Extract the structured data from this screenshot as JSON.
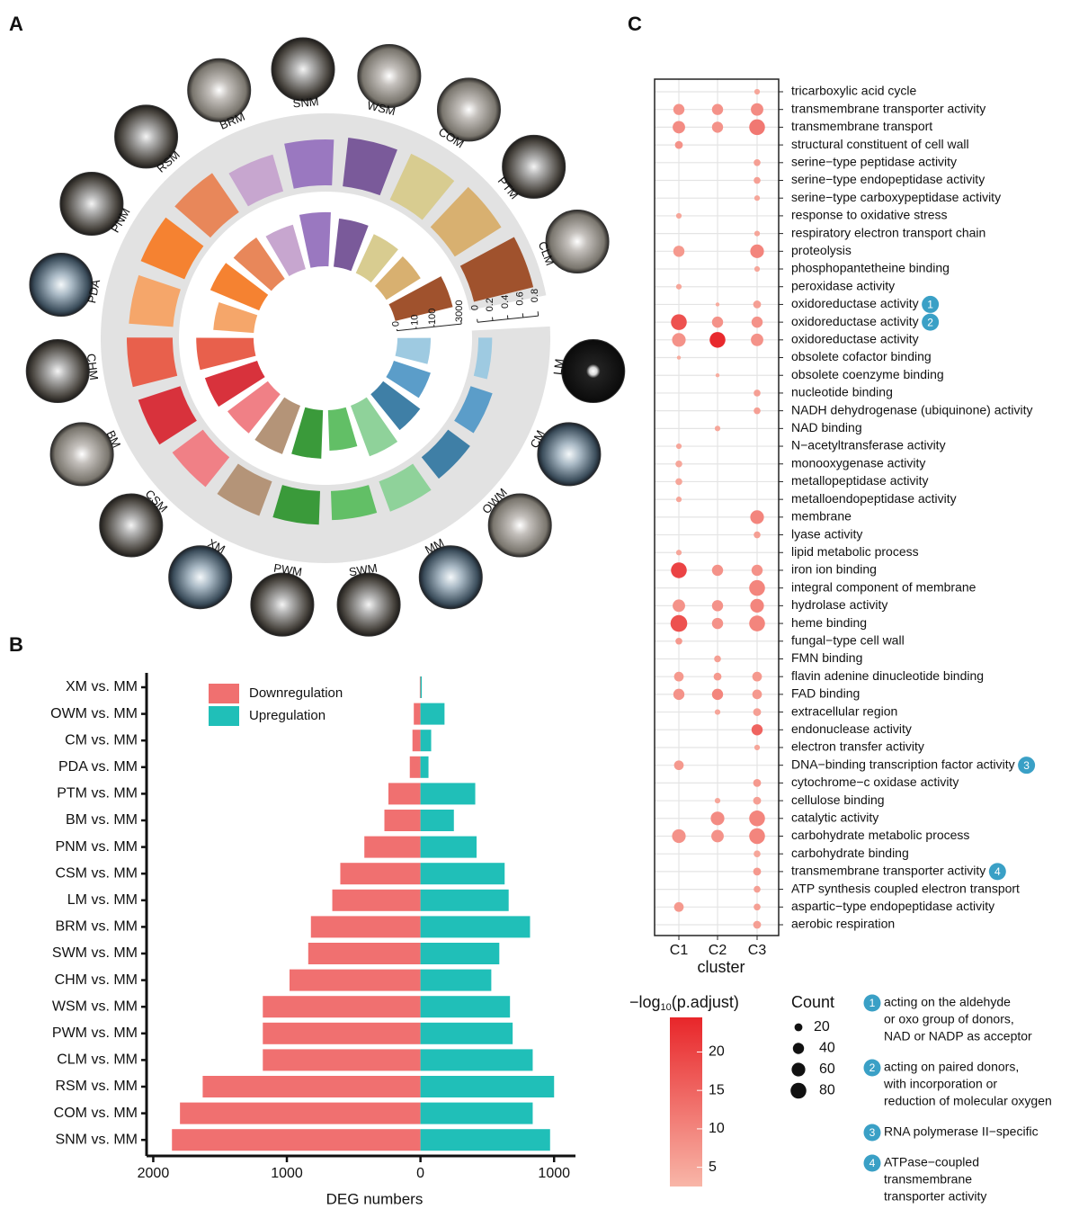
{
  "chart_data": [
    {
      "type": "polar_bar",
      "label": "A",
      "categories": [
        "LM",
        "CM",
        "OWM",
        "MM",
        "SWM",
        "PWM",
        "XM",
        "CSM",
        "BM",
        "CHM",
        "PDA",
        "PNM",
        "RSM",
        "BRM",
        "SNM",
        "WSM",
        "COM",
        "PTM",
        "CLM"
      ],
      "colors": [
        "#9ecae1",
        "#5b9dc9",
        "#3f7fa6",
        "#8fd29a",
        "#62bf66",
        "#3a9a3a",
        "#b49478",
        "#f08086",
        "#d8323c",
        "#e8604c",
        "#f5a66a",
        "#f58231",
        "#e8875a",
        "#c7a6cf",
        "#9a78c0",
        "#7a5a9a",
        "#d8cc90",
        "#d8b070",
        "#a0522d"
      ],
      "series": [
        {
          "values": [
            0.18,
            0.3,
            0.36,
            0.42,
            0.38,
            0.44,
            0.48,
            0.5,
            0.58,
            0.6,
            0.58,
            0.62,
            0.62,
            0.5,
            0.6,
            0.64,
            0.66,
            0.72,
            0.8
          ]
        },
        {
          "axis": "y2",
          "values": [
            60,
            120,
            300,
            800,
            150,
            400,
            600,
            500,
            900,
            1200,
            150,
            700,
            500,
            300,
            800,
            400,
            200,
            150,
            1500
          ]
        }
      ],
      "ylim": [
        0,
        0.8
      ],
      "yticks": [
        0,
        0.2,
        0.4,
        0.6,
        0.8
      ],
      "y2lim": [
        0,
        3000
      ],
      "y2ticks": [
        0,
        10,
        100,
        3000
      ],
      "y2scale": "log1p"
    },
    {
      "type": "hbar",
      "label": "B",
      "categories": [
        "XM vs. MM",
        "OWM vs. MM",
        "CM vs. MM",
        "PDA vs. MM",
        "PTM vs. MM",
        "BM vs. MM",
        "PNM vs. MM",
        "CSM vs. MM",
        "LM vs. MM",
        "BRM vs. MM",
        "SWM vs. MM",
        "CHM vs. MM",
        "WSM vs. MM",
        "PWM vs. MM",
        "CLM vs. MM",
        "RSM vs. MM",
        "COM vs. MM",
        "SNM vs. MM"
      ],
      "series": [
        {
          "name": "Downregulation",
          "color": "#f07070",
          "values": [
            -5,
            -50,
            -60,
            -80,
            -240,
            -270,
            -420,
            -600,
            -660,
            -820,
            -840,
            -980,
            -1180,
            -1180,
            -1180,
            -1630,
            -1800,
            -1860
          ]
        },
        {
          "name": "Upregulation",
          "color": "#20bfb8",
          "values": [
            10,
            180,
            80,
            60,
            410,
            250,
            420,
            630,
            660,
            820,
            590,
            530,
            670,
            690,
            840,
            1000,
            840,
            970
          ]
        }
      ],
      "xlim": [
        -2050,
        1160
      ],
      "xticks": [
        {
          "value": -2000,
          "label": "2000"
        },
        {
          "value": -1000,
          "label": "1000"
        },
        0,
        1000
      ],
      "xlabel": "DEG numbers"
    },
    {
      "type": "dot",
      "label": "C",
      "terms": [
        "tricarboxylic acid cycle",
        "transmembrane transporter activity",
        "transmembrane transport",
        "structural constituent of cell wall",
        "serine−type peptidase activity",
        "serine−type endopeptidase activity",
        "serine−type carboxypeptidase activity",
        "response to oxidative stress",
        "respiratory electron transport chain",
        "proteolysis",
        "phosphopantetheine binding",
        "peroxidase activity",
        "oxidoreductase activity",
        "oxidoreductase activity",
        "oxidoreductase activity",
        "obsolete cofactor binding",
        "obsolete coenzyme binding",
        "nucleotide binding",
        "NADH dehydrogenase (ubiquinone) activity",
        "NAD binding",
        "N−acetyltransferase activity",
        "monooxygenase activity",
        "metallopeptidase activity",
        "metalloendopeptidase activity",
        "membrane",
        "lyase activity",
        "lipid metabolic process",
        "iron ion binding",
        "integral component of membrane",
        "hydrolase activity",
        "heme binding",
        "fungal−type cell wall",
        "FMN binding",
        "flavin adenine dinucleotide binding",
        "FAD binding",
        "extracellular region",
        "endonuclease activity",
        "electron transfer activity",
        "DNA−binding transcription factor activity",
        "cytochrome−c oxidase activity",
        "cellulose binding",
        "catalytic activity",
        "carbohydrate metabolic process",
        "carbohydrate binding",
        "transmembrane transporter activity",
        "ATP synthesis coupled electron transport",
        "aspartic−type endopeptidase activity",
        "aerobic respiration"
      ],
      "term_badges": [
        null,
        null,
        null,
        null,
        null,
        null,
        null,
        null,
        null,
        null,
        null,
        null,
        "1",
        "2",
        null,
        null,
        null,
        null,
        null,
        null,
        null,
        null,
        null,
        null,
        null,
        null,
        null,
        null,
        null,
        null,
        null,
        null,
        null,
        null,
        null,
        null,
        null,
        null,
        "3",
        null,
        null,
        null,
        null,
        null,
        "4",
        null,
        null,
        null
      ],
      "clusters": [
        "C1",
        "C2",
        "C3"
      ],
      "xlabel": "cluster",
      "count": [
        [
          null,
          null,
          10
        ],
        [
          40,
          40,
          50
        ],
        [
          50,
          40,
          80
        ],
        [
          20,
          null,
          null
        ],
        [
          null,
          null,
          15
        ],
        [
          null,
          null,
          15
        ],
        [
          null,
          null,
          10
        ],
        [
          10,
          null,
          null
        ],
        [
          null,
          null,
          10
        ],
        [
          40,
          null,
          60
        ],
        [
          null,
          null,
          10
        ],
        [
          10,
          null,
          null
        ],
        [
          null,
          5,
          20
        ],
        [
          80,
          40,
          40
        ],
        [
          60,
          80,
          50
        ],
        [
          5,
          null,
          null
        ],
        [
          null,
          5,
          null
        ],
        [
          null,
          null,
          15
        ],
        [
          null,
          null,
          15
        ],
        [
          null,
          10,
          null
        ],
        [
          10,
          null,
          null
        ],
        [
          15,
          null,
          null
        ],
        [
          15,
          null,
          null
        ],
        [
          10,
          null,
          null
        ],
        [
          null,
          null,
          60
        ],
        [
          null,
          null,
          15
        ],
        [
          10,
          null,
          null
        ],
        [
          80,
          40,
          40
        ],
        [
          null,
          null,
          80
        ],
        [
          50,
          40,
          60
        ],
        [
          90,
          40,
          80
        ],
        [
          15,
          null,
          null
        ],
        [
          null,
          15,
          null
        ],
        [
          30,
          20,
          30
        ],
        [
          40,
          40,
          30
        ],
        [
          null,
          10,
          20
        ],
        [
          null,
          null,
          40
        ],
        [
          null,
          null,
          10
        ],
        [
          30,
          null,
          null
        ],
        [
          null,
          null,
          20
        ],
        [
          null,
          10,
          20
        ],
        [
          null,
          60,
          80
        ],
        [
          60,
          50,
          80
        ],
        [
          null,
          null,
          15
        ],
        [
          null,
          null,
          20
        ],
        [
          null,
          null,
          15
        ],
        [
          30,
          null,
          15
        ],
        [
          null,
          null,
          20
        ]
      ],
      "neglog_padj": [
        [
          null,
          null,
          5
        ],
        [
          8,
          8,
          9
        ],
        [
          9,
          8,
          12
        ],
        [
          8,
          null,
          null
        ],
        [
          null,
          null,
          6
        ],
        [
          null,
          null,
          6
        ],
        [
          null,
          null,
          5
        ],
        [
          5,
          null,
          null
        ],
        [
          null,
          null,
          5
        ],
        [
          7,
          null,
          10
        ],
        [
          null,
          null,
          5
        ],
        [
          5,
          null,
          null
        ],
        [
          null,
          4,
          6
        ],
        [
          18,
          8,
          8
        ],
        [
          8,
          24,
          8
        ],
        [
          4,
          null,
          null
        ],
        [
          null,
          4,
          null
        ],
        [
          null,
          null,
          6
        ],
        [
          null,
          null,
          6
        ],
        [
          null,
          5,
          null
        ],
        [
          5,
          null,
          null
        ],
        [
          5,
          null,
          null
        ],
        [
          5,
          null,
          null
        ],
        [
          5,
          null,
          null
        ],
        [
          null,
          null,
          10
        ],
        [
          null,
          null,
          6
        ],
        [
          5,
          null,
          null
        ],
        [
          20,
          8,
          8
        ],
        [
          null,
          null,
          10
        ],
        [
          8,
          8,
          10
        ],
        [
          18,
          8,
          10
        ],
        [
          7,
          null,
          null
        ],
        [
          null,
          6,
          null
        ],
        [
          7,
          7,
          7
        ],
        [
          8,
          10,
          7
        ],
        [
          null,
          5,
          6
        ],
        [
          null,
          null,
          15
        ],
        [
          null,
          null,
          5
        ],
        [
          7,
          null,
          null
        ],
        [
          null,
          null,
          7
        ],
        [
          null,
          5,
          6
        ],
        [
          null,
          9,
          10
        ],
        [
          8,
          8,
          10
        ],
        [
          null,
          null,
          5
        ],
        [
          null,
          null,
          7
        ],
        [
          null,
          null,
          6
        ],
        [
          7,
          null,
          6
        ],
        [
          null,
          null,
          6
        ]
      ],
      "color_title": [
        "−log",
        "10",
        "(p.adjust)"
      ],
      "clim": [
        2.5,
        24.5
      ],
      "cticks": [
        5,
        10,
        15,
        20
      ],
      "color_low": "#f8b6a8",
      "color_high": "#e8262a",
      "size_title": "Count",
      "size_ticks": [
        20,
        40,
        60,
        80
      ],
      "notes": [
        {
          "badge": "1",
          "lines": [
            "acting on the aldehyde",
            "or oxo group of donors,",
            "NAD or NADP as acceptor"
          ]
        },
        {
          "badge": "2",
          "lines": [
            "acting on paired donors,",
            "with incorporation or",
            "reduction of molecular oxygen"
          ]
        },
        {
          "badge": "3",
          "lines": [
            "RNA polymerase II−specific"
          ]
        },
        {
          "badge": "4",
          "lines": [
            "ATPase−coupled",
            "transmembrane",
            "transporter activity"
          ]
        }
      ]
    }
  ]
}
